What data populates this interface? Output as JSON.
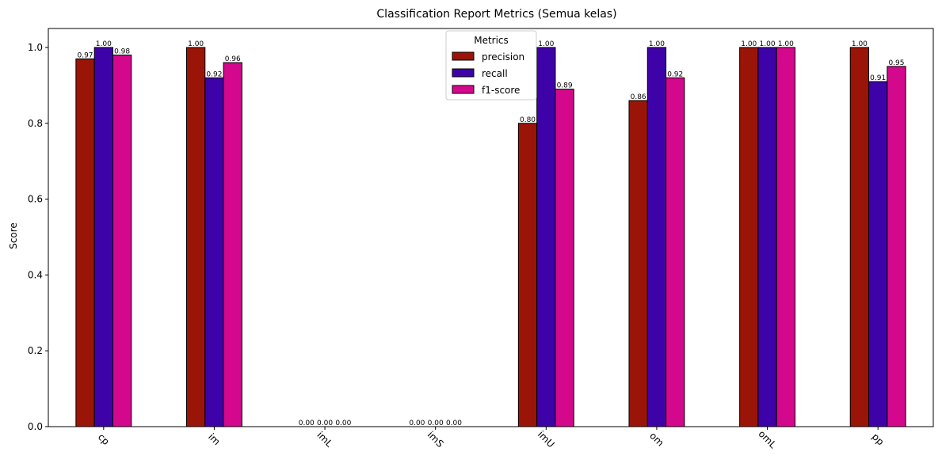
{
  "chart_data": {
    "type": "bar",
    "title": "Classification Report Metrics (Semua kelas)",
    "xlabel": "",
    "ylabel": "Score",
    "categories": [
      "cp",
      "im",
      "imL",
      "imS",
      "imU",
      "om",
      "omL",
      "pp"
    ],
    "series": [
      {
        "name": "precision",
        "color": "#9b1408",
        "values": [
          0.97,
          1.0,
          0.0,
          0.0,
          0.8,
          0.86,
          1.0,
          1.0
        ]
      },
      {
        "name": "recall",
        "color": "#3e03a8",
        "values": [
          1.0,
          0.92,
          0.0,
          0.0,
          1.0,
          1.0,
          1.0,
          0.91
        ]
      },
      {
        "name": "f1-score",
        "color": "#d4088c",
        "values": [
          0.98,
          0.96,
          0.0,
          0.0,
          0.89,
          0.92,
          1.0,
          0.95
        ]
      }
    ],
    "ylim": [
      0,
      1.05
    ],
    "yticks": [
      "0.0",
      "0.2",
      "0.4",
      "0.6",
      "0.8",
      "1.0"
    ],
    "legend": {
      "title": "Metrics",
      "placement": "top-center"
    },
    "grid": false
  }
}
